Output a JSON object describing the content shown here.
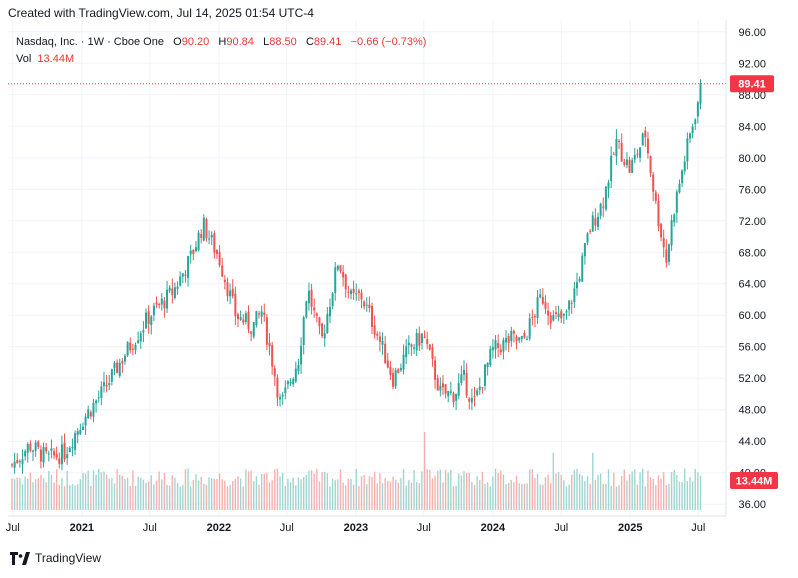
{
  "header": {
    "created": "Created with TradingView.com, Jul 14, 2025 01:54 UTC-4"
  },
  "legend": {
    "symbol": "Nasdaq, Inc. · 1W · Cboe One",
    "o_label": "O",
    "o": "90.20",
    "h_label": "H",
    "h": "90.84",
    "l_label": "L",
    "l": "88.50",
    "c_label": "C",
    "c": "89.41",
    "change": "−0.66 (−0.73%)",
    "vol_label": "Vol",
    "vol": "13.44M"
  },
  "footer": {
    "brand": "TradingView"
  },
  "colors": {
    "up": "#26a69a",
    "down": "#ef5350",
    "grid": "#f0f3fa",
    "badge": "#f23645",
    "upVol": "#9fd6d1",
    "downVol": "#f6b1af"
  },
  "chart_data": {
    "type": "candlestick",
    "title": "Nasdaq, Inc. · 1W · Cboe One",
    "interval": "1W",
    "y_ticks": [
      "96.00",
      "92.00",
      "88.00",
      "84.00",
      "80.00",
      "76.00",
      "72.00",
      "68.00",
      "64.00",
      "60.00",
      "56.00",
      "52.00",
      "48.00",
      "44.00",
      "40.00",
      "36.00"
    ],
    "ylim": [
      34.5,
      97.5
    ],
    "x_ticks": [
      "Jul",
      "2021",
      "Jul",
      "2022",
      "Jul",
      "2023",
      "Jul",
      "2024",
      "Jul",
      "2025",
      "Jul"
    ],
    "x_tick_bold": [
      false,
      true,
      false,
      true,
      false,
      true,
      false,
      true,
      false,
      true,
      false
    ],
    "last_price": "89.41",
    "last_volume": "13.44M",
    "close_path": [
      [
        "2020-06-29",
        41.0
      ],
      [
        "2020-08-15",
        43.5
      ],
      [
        "2020-10-01",
        41.8
      ],
      [
        "2020-11-15",
        42.5
      ],
      [
        "2020-12-31",
        46.5
      ],
      [
        "2021-03-01",
        50.5
      ],
      [
        "2021-05-01",
        55.5
      ],
      [
        "2021-07-01",
        60.0
      ],
      [
        "2021-09-01",
        63.0
      ],
      [
        "2021-10-15",
        67.0
      ],
      [
        "2021-11-20",
        71.5
      ],
      [
        "2021-12-31",
        67.5
      ],
      [
        "2022-02-15",
        60.0
      ],
      [
        "2022-04-01",
        58.5
      ],
      [
        "2022-04-25",
        60.5
      ],
      [
        "2022-05-20",
        55.0
      ],
      [
        "2022-06-15",
        48.5
      ],
      [
        "2022-08-01",
        54.5
      ],
      [
        "2022-08-25",
        63.5
      ],
      [
        "2022-10-01",
        56.5
      ],
      [
        "2022-11-15",
        67.0
      ],
      [
        "2022-12-20",
        62.0
      ],
      [
        "2023-01-15",
        62.5
      ],
      [
        "2023-02-20",
        58.5
      ],
      [
        "2023-04-10",
        52.0
      ],
      [
        "2023-05-20",
        55.5
      ],
      [
        "2023-06-30",
        57.5
      ],
      [
        "2023-08-15",
        50.0
      ],
      [
        "2023-09-20",
        50.0
      ],
      [
        "2023-10-15",
        52.0
      ],
      [
        "2023-11-10",
        48.5
      ],
      [
        "2023-12-31",
        55.5
      ],
      [
        "2024-02-20",
        57.0
      ],
      [
        "2024-03-20",
        56.5
      ],
      [
        "2024-05-10",
        62.5
      ],
      [
        "2024-06-10",
        59.5
      ],
      [
        "2024-07-10",
        59.5
      ],
      [
        "2024-08-15",
        64.5
      ],
      [
        "2024-09-15",
        71.0
      ],
      [
        "2024-10-20",
        74.5
      ],
      [
        "2024-11-25",
        82.0
      ],
      [
        "2024-12-31",
        78.5
      ],
      [
        "2025-02-10",
        83.0
      ],
      [
        "2025-03-10",
        74.0
      ],
      [
        "2025-04-07",
        67.0
      ],
      [
        "2025-04-25",
        73.0
      ],
      [
        "2025-05-31",
        81.0
      ],
      [
        "2025-07-11",
        89.41
      ]
    ],
    "volume_spikes": [
      [
        "2023-06-30",
        15.0
      ],
      [
        "2023-08-10",
        7.5
      ],
      [
        "2024-06-10",
        11.0
      ],
      [
        "2024-09-20",
        11.0
      ],
      [
        "2025-03-10",
        4.8
      ],
      [
        "2025-04-07",
        4.8
      ]
    ]
  }
}
